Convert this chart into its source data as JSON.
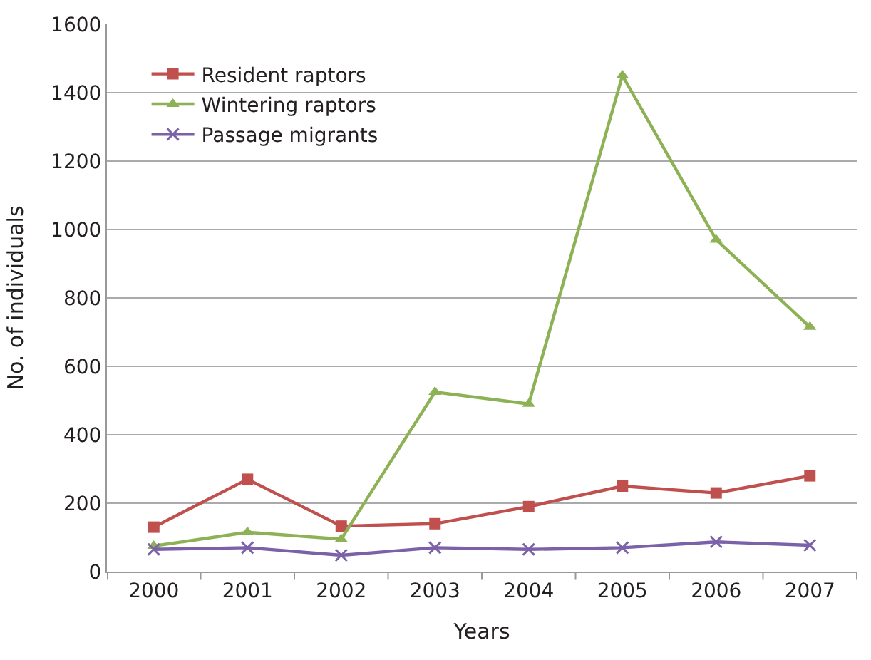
{
  "chart_data": {
    "type": "line",
    "xlabel": "Years",
    "ylabel": "No. of individuals",
    "categories": [
      "2000",
      "2001",
      "2002",
      "2003",
      "2004",
      "2005",
      "2006",
      "2007"
    ],
    "series": [
      {
        "name": "Resident raptors",
        "color": "#c0504d",
        "marker": "square",
        "values": [
          130,
          270,
          133,
          140,
          190,
          250,
          230,
          280
        ]
      },
      {
        "name": "Wintering raptors",
        "color": "#8db255",
        "marker": "triangle",
        "values": [
          75,
          115,
          95,
          525,
          490,
          1450,
          970,
          715
        ]
      },
      {
        "name": "Passage migrants",
        "color": "#7b62a8",
        "marker": "cross",
        "values": [
          65,
          70,
          48,
          70,
          65,
          70,
          87,
          77
        ]
      }
    ],
    "ylim": [
      0,
      1600
    ],
    "yticks": [
      0,
      200,
      400,
      600,
      800,
      1000,
      1200,
      1400,
      1600
    ],
    "grid": "y",
    "legend": "top left",
    "line_style": "solid"
  }
}
